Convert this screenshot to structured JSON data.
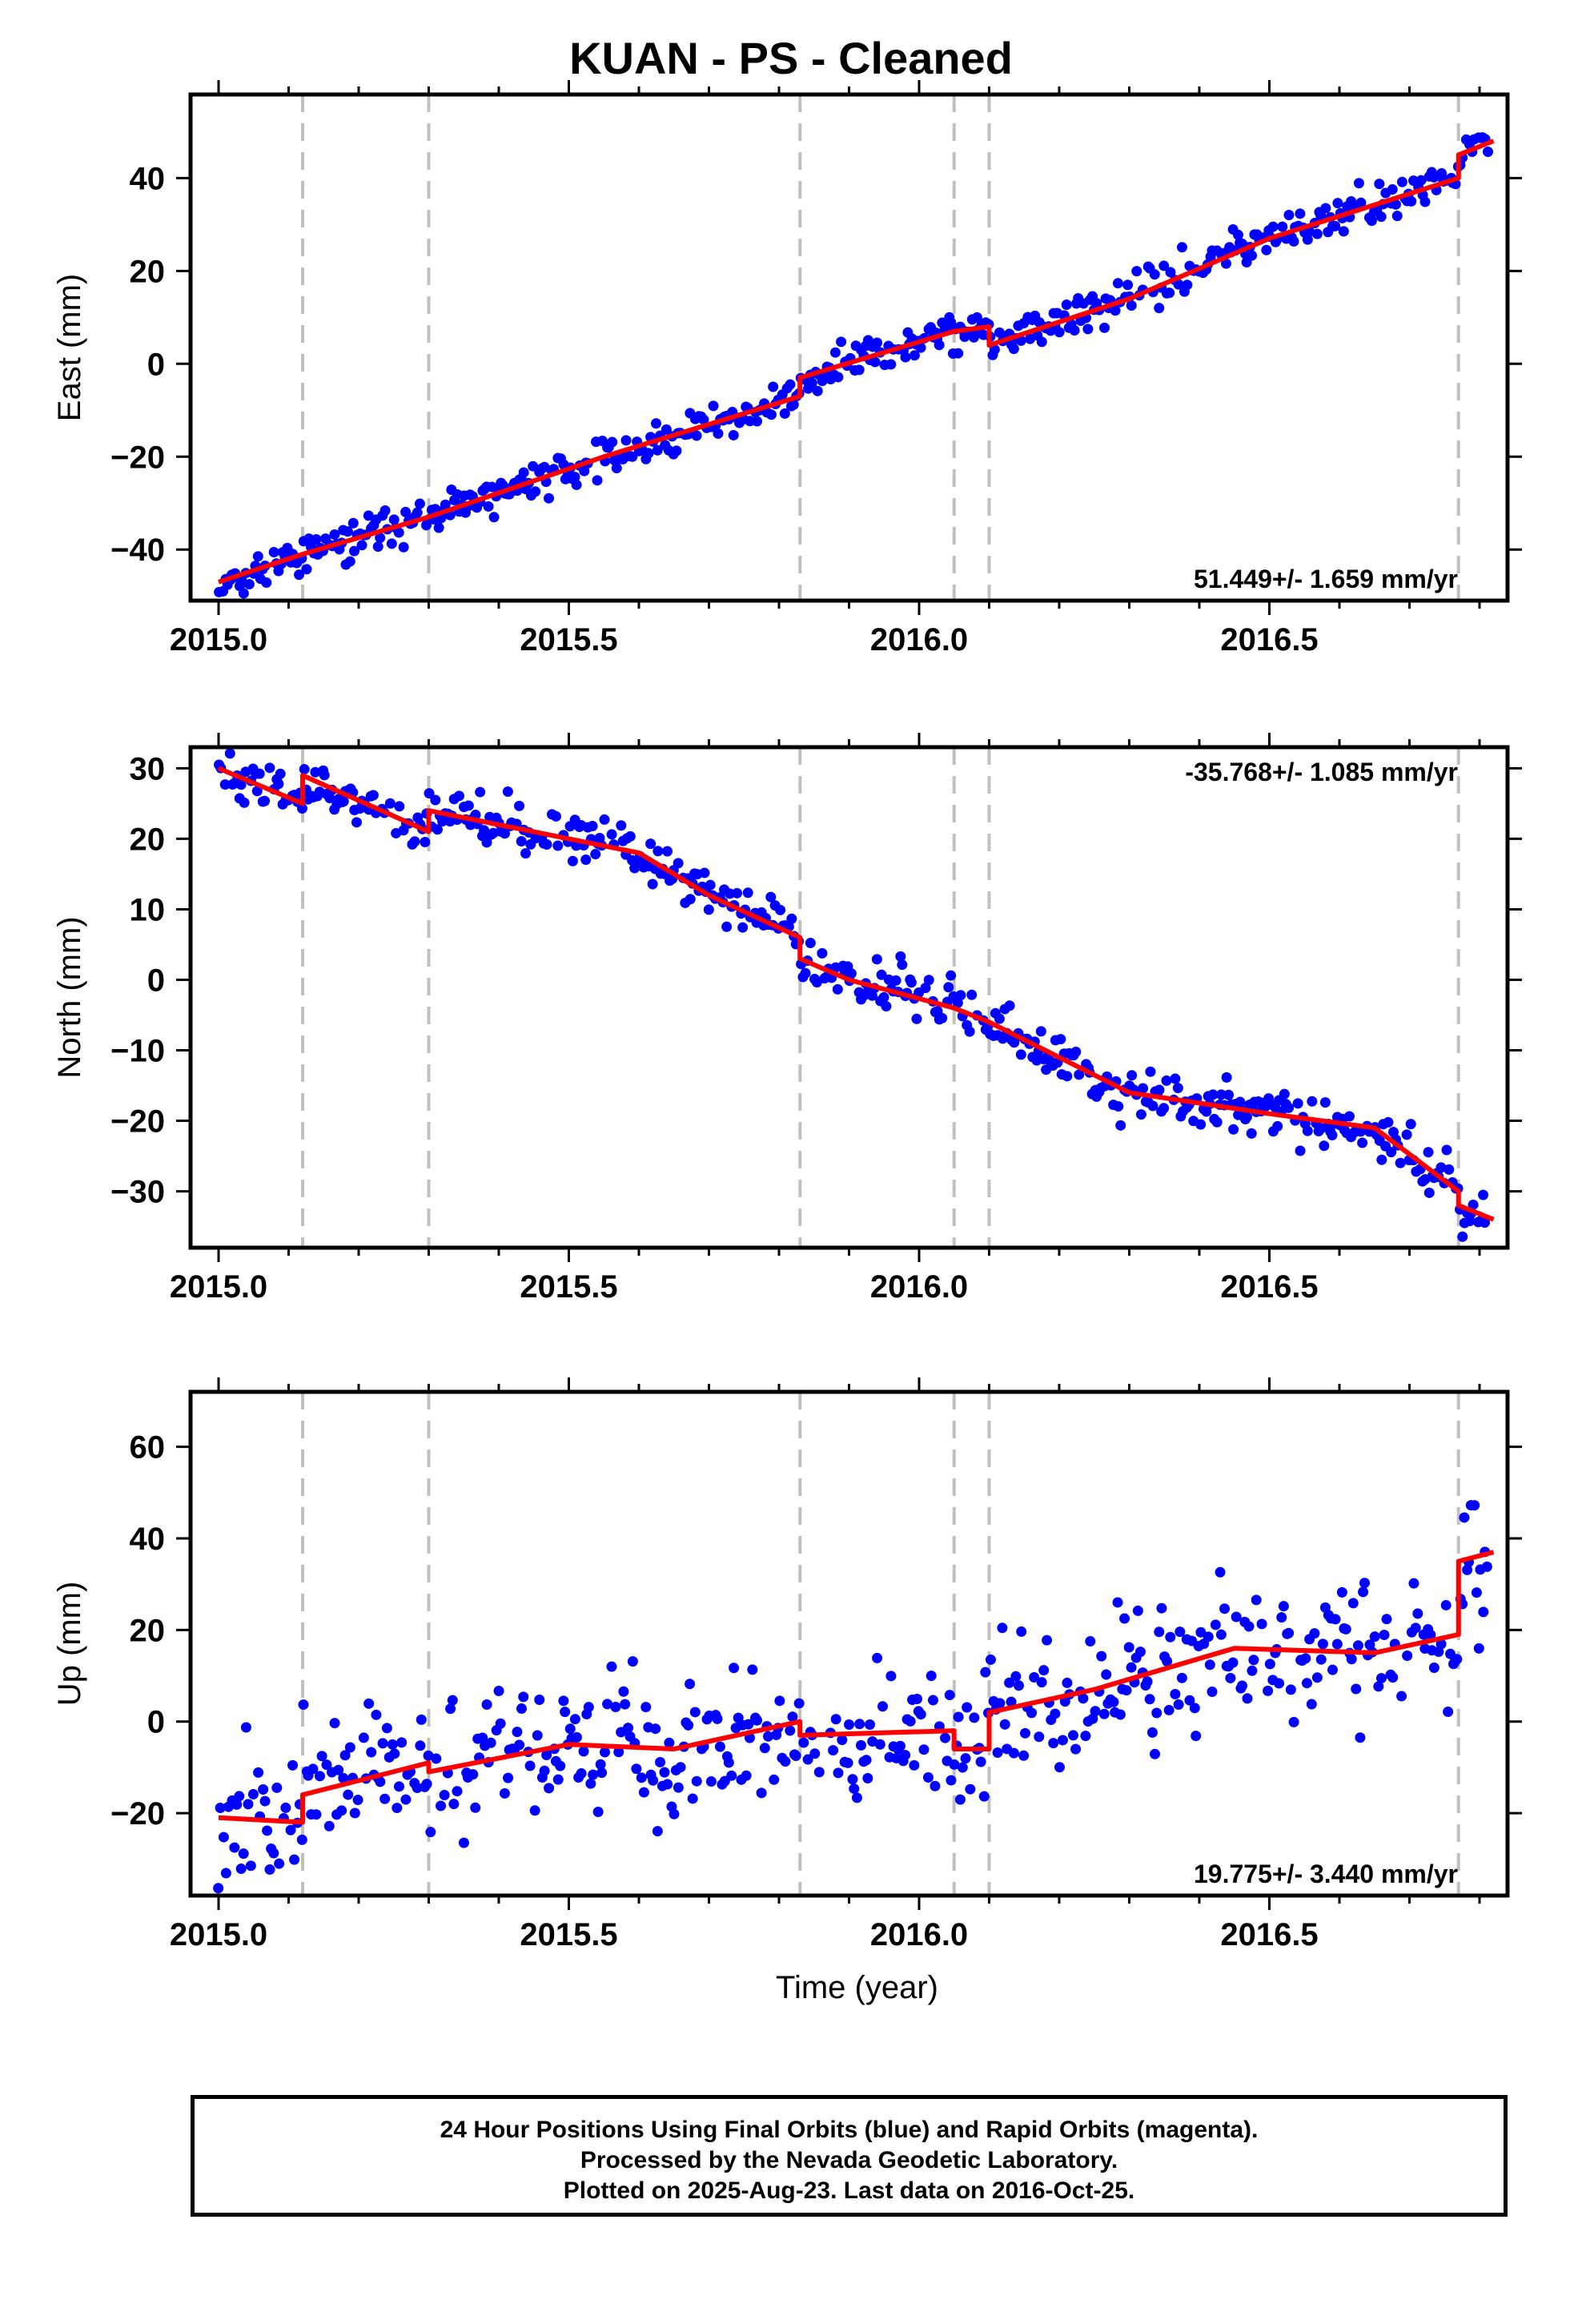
{
  "title": "KUAN  - PS - Cleaned",
  "footer": {
    "line1": "24 Hour Positions Using Final Orbits (blue) and Rapid Orbits (magenta).",
    "line2": "Processed by the Nevada Geodetic Laboratory.",
    "line3": "Plotted on 2025-Aug-23. Last data on 2016-Oct-25."
  },
  "colors": {
    "points": "#0000ff",
    "model": "#ff0000",
    "steps": "#c0c0c0"
  },
  "chart_data": [
    {
      "type": "scatter",
      "ylabel": "East (mm)",
      "xlabel": "",
      "xlim": [
        2014.96,
        2016.84
      ],
      "ylim": [
        -51,
        58
      ],
      "xticks": [
        2015.0,
        2015.5,
        2016.0,
        2016.5
      ],
      "xtick_labels": [
        "2015.0",
        "2015.5",
        "2016.0",
        "2016.5"
      ],
      "yticks": [
        -40,
        -20,
        0,
        20,
        40
      ],
      "ytick_labels": [
        "−40",
        "−20",
        "0",
        "20",
        "40"
      ],
      "rate_text": "51.449+/- 1.659 mm/yr",
      "rate_position": "bottom-right",
      "steps": [
        2015.12,
        2015.3,
        2015.83,
        2016.05,
        2016.1,
        2016.77
      ],
      "model": {
        "x": [
          2015.0,
          2015.12,
          2015.3,
          2015.55,
          2015.83,
          2015.83,
          2016.05,
          2016.1,
          2016.1,
          2016.3,
          2016.5,
          2016.77,
          2016.77,
          2016.82
        ],
        "y": [
          -47,
          -41,
          -33,
          -20,
          -7,
          -3,
          7,
          8,
          4,
          14,
          27,
          40,
          45,
          48
        ]
      },
      "points_seed": 11,
      "points_scatter": 2.2
    },
    {
      "type": "scatter",
      "ylabel": "North (mm)",
      "xlabel": "",
      "xlim": [
        2014.96,
        2016.84
      ],
      "ylim": [
        -38,
        33
      ],
      "xticks": [
        2015.0,
        2015.5,
        2016.0,
        2016.5
      ],
      "xtick_labels": [
        "2015.0",
        "2015.5",
        "2016.0",
        "2016.5"
      ],
      "yticks": [
        -30,
        -20,
        -10,
        0,
        10,
        20,
        30
      ],
      "ytick_labels": [
        "−30",
        "−20",
        "−10",
        "0",
        "10",
        "20",
        "30"
      ],
      "rate_text": "-35.768+/- 1.085 mm/yr",
      "rate_position": "top-right",
      "steps": [
        2015.12,
        2015.3,
        2015.83,
        2016.05,
        2016.1,
        2016.77
      ],
      "model": {
        "x": [
          2015.0,
          2015.12,
          2015.12,
          2015.3,
          2015.3,
          2015.5,
          2015.6,
          2015.7,
          2015.83,
          2015.83,
          2015.9,
          2016.05,
          2016.1,
          2016.2,
          2016.3,
          2016.5,
          2016.65,
          2016.77,
          2016.77,
          2016.82
        ],
        "y": [
          30,
          25,
          29,
          21,
          24,
          20,
          18,
          12,
          6,
          3,
          0,
          -4,
          -6,
          -11,
          -16,
          -19,
          -21,
          -30,
          -32,
          -34
        ]
      },
      "points_seed": 23,
      "points_scatter": 1.8
    },
    {
      "type": "scatter",
      "ylabel": "Up (mm)",
      "xlabel": "Time (year)",
      "xlim": [
        2014.96,
        2016.84
      ],
      "ylim": [
        -38,
        72
      ],
      "xticks": [
        2015.0,
        2015.5,
        2016.0,
        2016.5
      ],
      "xtick_labels": [
        "2015.0",
        "2015.5",
        "2016.0",
        "2016.5"
      ],
      "yticks": [
        -20,
        0,
        20,
        40,
        60
      ],
      "ytick_labels": [
        "−20",
        "0",
        "20",
        "40",
        "60"
      ],
      "rate_text": "19.775+/- 3.440 mm/yr",
      "rate_position": "bottom-right",
      "steps": [
        2015.12,
        2015.3,
        2015.83,
        2016.05,
        2016.1,
        2016.77
      ],
      "model": {
        "x": [
          2015.0,
          2015.12,
          2015.12,
          2015.3,
          2015.3,
          2015.5,
          2015.65,
          2015.83,
          2015.83,
          2016.05,
          2016.05,
          2016.1,
          2016.1,
          2016.25,
          2016.45,
          2016.65,
          2016.77,
          2016.77,
          2016.82
        ],
        "y": [
          -21,
          -22,
          -16,
          -9,
          -11,
          -5,
          -6,
          0,
          -3,
          -2,
          -6,
          -6,
          2,
          7,
          16,
          15,
          19,
          35,
          37
        ]
      },
      "points_seed": 37,
      "points_scatter": 8.0
    }
  ]
}
